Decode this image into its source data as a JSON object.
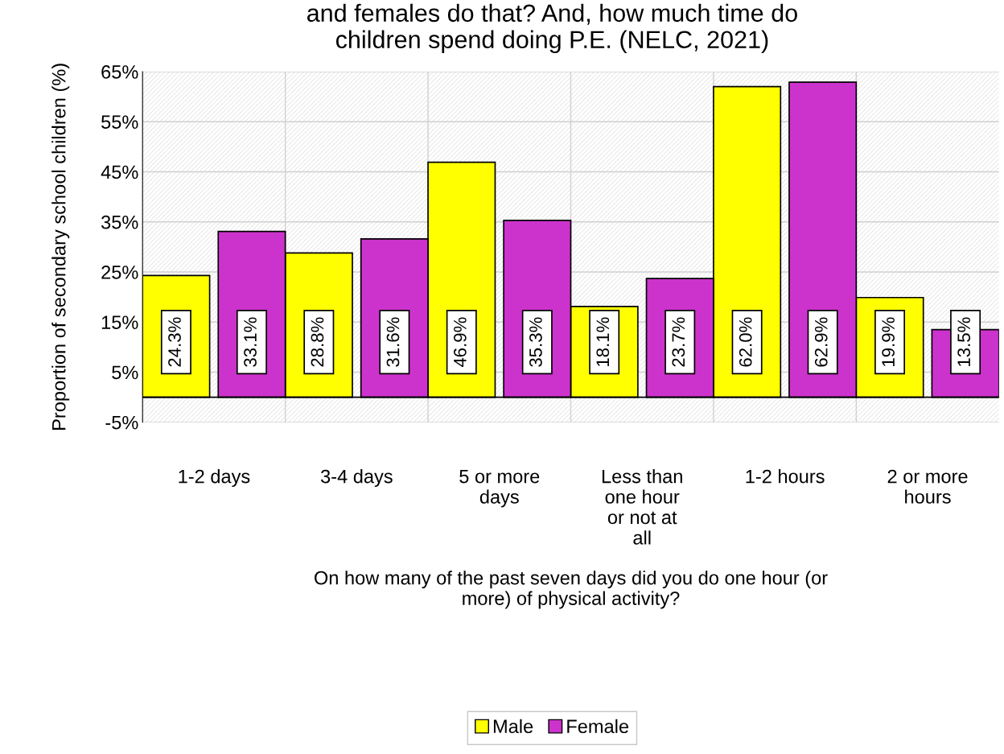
{
  "chart_data": {
    "type": "bar",
    "title": "and females do that? And, how much time do\nchildren spend doing P.E. (NELC, 2021)",
    "xlabel": "On how many of the past seven days did you do one hour (or\nmore) of physical activity?",
    "ylabel": "Proportion of secondary school children (%)",
    "categories": [
      "1-2 days",
      "3-4 days",
      "5 or more\ndays",
      "Less than\none hour\nor not at\nall",
      "1-2 hours",
      "2 or more\nhours"
    ],
    "series": [
      {
        "name": "Male",
        "color": "#ffff00",
        "values": [
          24.3,
          28.8,
          46.9,
          18.1,
          62.0,
          19.9
        ],
        "value_labels": [
          "24.3%",
          "28.8%",
          "46.9%",
          "18.1%",
          "62.0%",
          "19.9%"
        ]
      },
      {
        "name": "Female",
        "color": "#cc33cc",
        "values": [
          33.1,
          31.6,
          35.3,
          23.7,
          62.9,
          13.5
        ],
        "value_labels": [
          "33.1%",
          "31.6%",
          "35.3%",
          "23.7%",
          "62.9%",
          "13.5%"
        ]
      }
    ],
    "ylim": [
      -5,
      65
    ],
    "yticks": [
      {
        "value": -5,
        "label": "-5%"
      },
      {
        "value": 5,
        "label": "5%"
      },
      {
        "value": 15,
        "label": "15%"
      },
      {
        "value": 25,
        "label": "25%"
      },
      {
        "value": 35,
        "label": "35%"
      },
      {
        "value": 45,
        "label": "45%"
      },
      {
        "value": 55,
        "label": "55%"
      },
      {
        "value": 65,
        "label": "65%"
      }
    ],
    "grid": true,
    "legend": "bottom"
  }
}
